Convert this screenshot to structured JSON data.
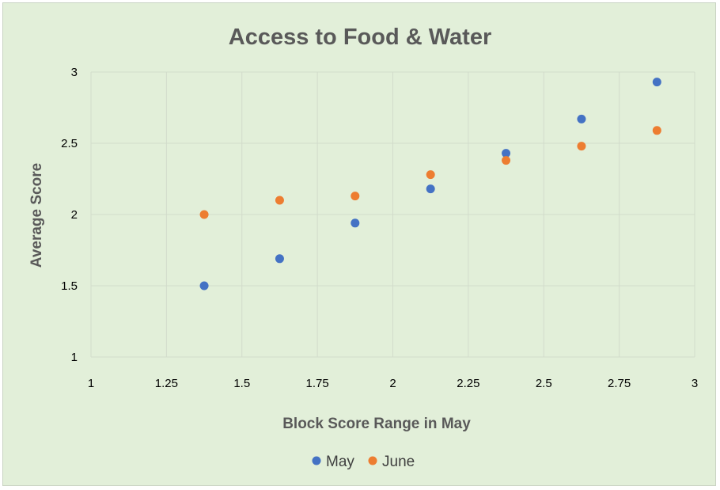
{
  "chart_data": {
    "type": "scatter",
    "title": "Access to Food & Water",
    "xlabel": "Block Score Range in May",
    "ylabel": "Average Score",
    "xlim": [
      1,
      3
    ],
    "ylim": [
      1,
      3
    ],
    "xticks": [
      "1",
      "1.25",
      "1.5",
      "1.75",
      "2",
      "2.25",
      "2.5",
      "2.75",
      "3"
    ],
    "yticks": [
      "1",
      "1.5",
      "2",
      "2.5",
      "3"
    ],
    "grid": true,
    "legend_position": "bottom",
    "series": [
      {
        "name": "May",
        "color": "#4472c4",
        "x": [
          1.375,
          1.625,
          1.875,
          2.125,
          2.375,
          2.625,
          2.875
        ],
        "y": [
          1.5,
          1.69,
          1.94,
          2.18,
          2.43,
          2.67,
          2.93
        ]
      },
      {
        "name": "June",
        "color": "#ed7d31",
        "x": [
          1.375,
          1.625,
          1.875,
          2.125,
          2.375,
          2.625,
          2.875
        ],
        "y": [
          2.0,
          2.1,
          2.13,
          2.28,
          2.38,
          2.48,
          2.59
        ]
      }
    ]
  }
}
